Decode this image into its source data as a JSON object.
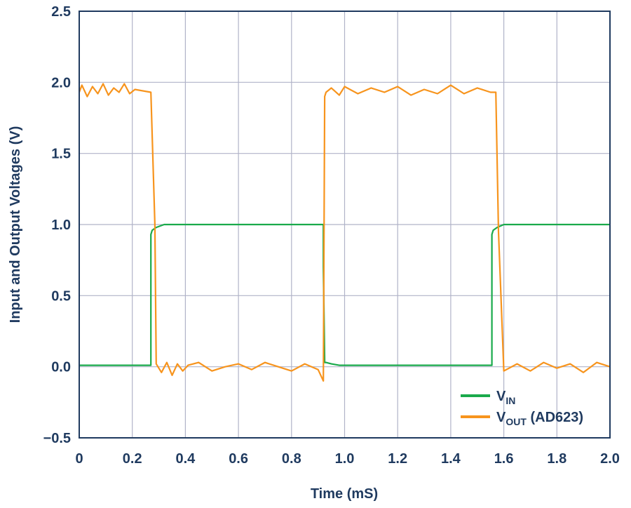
{
  "chart_data": {
    "type": "line",
    "xlabel": "Time (mS)",
    "ylabel": "Input and Output Voltages (V)",
    "xlim": [
      0,
      2.0
    ],
    "ylim": [
      -0.5,
      2.5
    ],
    "x_ticks": [
      "0",
      "0.2",
      "0.4",
      "0.6",
      "0.8",
      "1.0",
      "1.2",
      "1.4",
      "1.6",
      "1.8",
      "2.0"
    ],
    "y_ticks": [
      "2.5",
      "2.0",
      "1.5",
      "1.0",
      "0.5",
      "0.0",
      "−0.5"
    ],
    "grid": true,
    "legend_position": "bottom-right",
    "series": [
      {
        "name": "VIN",
        "legend_main": "V",
        "legend_sub": "IN",
        "legend_suffix": "",
        "color": "#1aaa4b",
        "x": [
          0,
          0.27,
          0.27,
          0.275,
          0.29,
          0.32,
          0.92,
          0.92,
          0.925,
          0.93,
          0.95,
          0.98,
          1.555,
          1.555,
          1.56,
          1.575,
          1.6,
          2.0
        ],
        "y": [
          0.01,
          0.01,
          0.93,
          0.96,
          0.98,
          1.0,
          1.0,
          0.7,
          0.03,
          0.03,
          0.02,
          0.01,
          0.01,
          0.93,
          0.96,
          0.98,
          1.0,
          1.0
        ]
      },
      {
        "name": "VOUT (AD623)",
        "legend_main": "V",
        "legend_sub": "OUT",
        "legend_suffix": " (AD623)",
        "color": "#f7941d",
        "x": [
          0,
          0.01,
          0.03,
          0.05,
          0.07,
          0.09,
          0.11,
          0.13,
          0.15,
          0.17,
          0.19,
          0.21,
          0.27,
          0.285,
          0.29,
          0.31,
          0.33,
          0.35,
          0.37,
          0.39,
          0.41,
          0.45,
          0.5,
          0.55,
          0.6,
          0.65,
          0.7,
          0.75,
          0.8,
          0.85,
          0.9,
          0.92,
          0.925,
          0.93,
          0.95,
          0.98,
          1.0,
          1.05,
          1.1,
          1.15,
          1.2,
          1.25,
          1.3,
          1.35,
          1.4,
          1.45,
          1.5,
          1.55,
          1.57,
          1.58,
          1.6,
          1.65,
          1.7,
          1.75,
          1.8,
          1.85,
          1.9,
          1.95,
          2.0
        ],
        "y": [
          1.93,
          1.98,
          1.9,
          1.97,
          1.92,
          1.99,
          1.91,
          1.96,
          1.93,
          1.99,
          1.92,
          1.95,
          1.93,
          1.0,
          0.02,
          -0.04,
          0.03,
          -0.06,
          0.02,
          -0.03,
          0.01,
          0.03,
          -0.03,
          0.0,
          0.02,
          -0.02,
          0.03,
          0.0,
          -0.03,
          0.02,
          -0.02,
          -0.1,
          1.9,
          1.93,
          1.96,
          1.91,
          1.97,
          1.92,
          1.96,
          1.93,
          1.97,
          1.91,
          1.95,
          1.92,
          1.98,
          1.92,
          1.96,
          1.93,
          1.93,
          0.95,
          -0.03,
          0.02,
          -0.03,
          0.03,
          -0.01,
          0.02,
          -0.04,
          0.03,
          0.0
        ]
      }
    ]
  }
}
